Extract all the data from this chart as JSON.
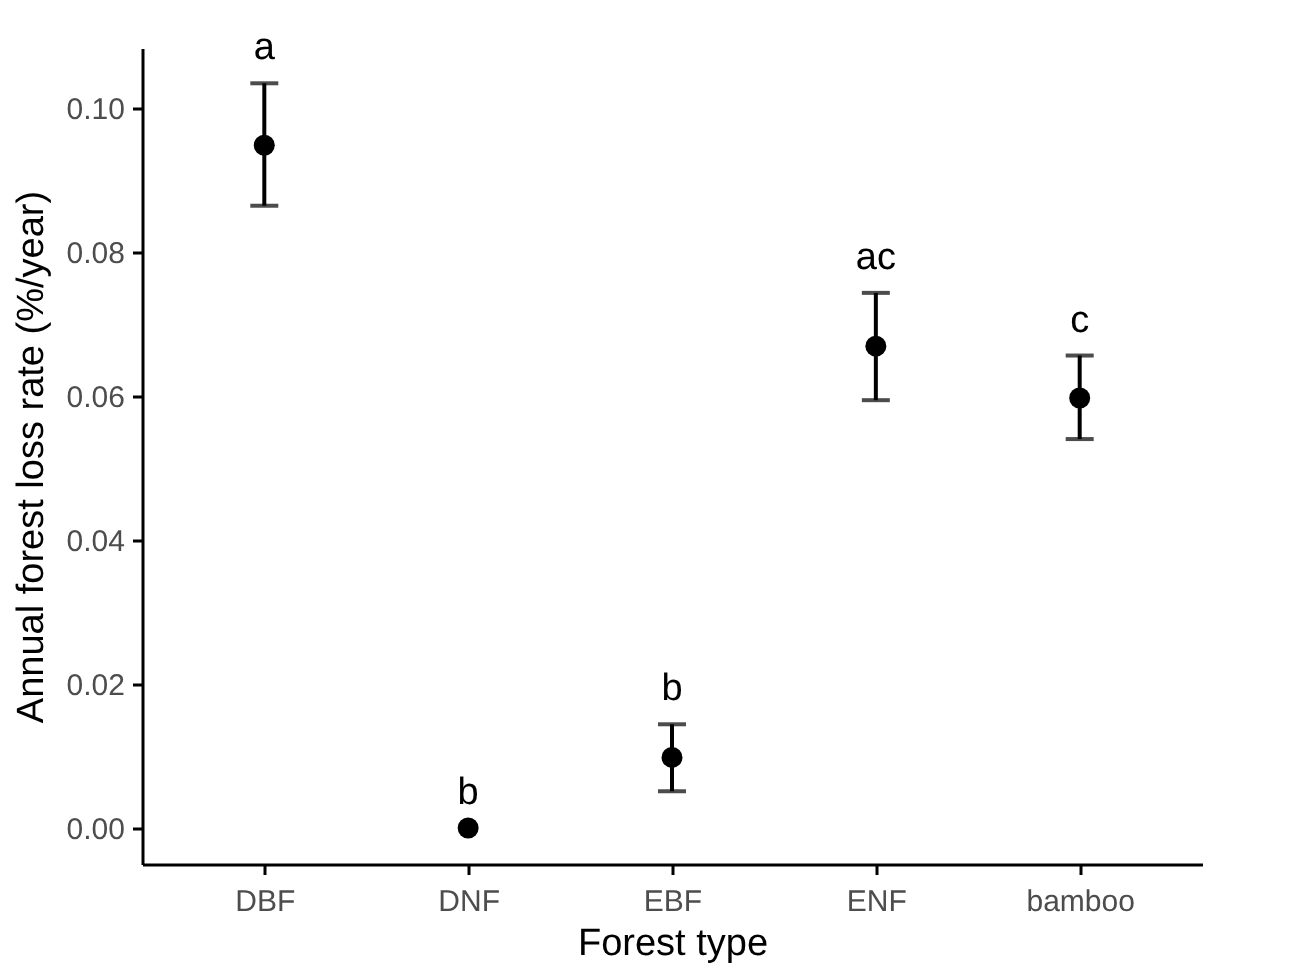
{
  "chart_data": {
    "type": "scatter",
    "xlabel": "Forest type",
    "ylabel": "Annual forest loss rate  (%/year)",
    "categories": [
      "DBF",
      "DNF",
      "EBF",
      "ENF",
      "bamboo"
    ],
    "series": [
      {
        "color": "#000000",
        "values": [
          0.0948,
          0.0,
          0.0098,
          0.0669,
          0.0597
        ],
        "errors": [
          [
            0.0864,
            0.1034
          ],
          null,
          [
            0.0051,
            0.0144
          ],
          [
            0.0594,
            0.0743
          ],
          [
            0.054,
            0.0656
          ]
        ]
      }
    ],
    "ylim": [
      -0.005,
      0.1083
    ],
    "yticks": [
      {
        "value": 0.0,
        "label": "0.00"
      },
      {
        "value": 0.02,
        "label": "0.02"
      },
      {
        "value": 0.04,
        "label": "0.04"
      },
      {
        "value": 0.06,
        "label": "0.06"
      },
      {
        "value": 0.08,
        "label": "0.08"
      },
      {
        "value": 0.1,
        "label": "0.10"
      }
    ],
    "annotations": [
      {
        "text": "a",
        "x": "DBF",
        "y": 0.1034
      },
      {
        "text": "b",
        "x": "DNF",
        "y": 0.0
      },
      {
        "text": "b",
        "x": "EBF",
        "y": 0.0144
      },
      {
        "text": "ac",
        "x": "ENF",
        "y": 0.0743
      },
      {
        "text": "c",
        "x": "bamboo",
        "y": 0.0656
      }
    ],
    "grid": false,
    "marker": "circle"
  }
}
